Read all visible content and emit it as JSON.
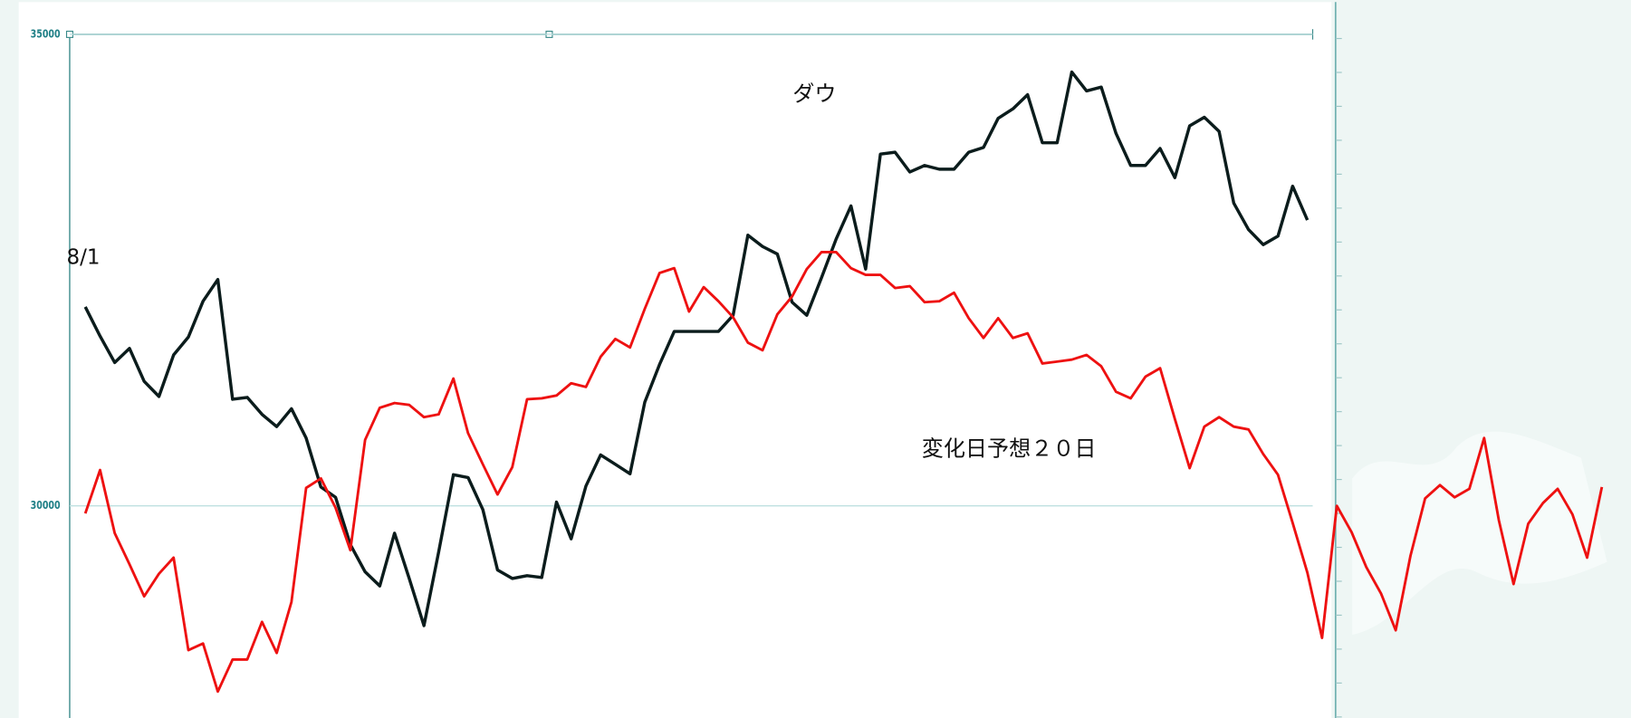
{
  "chart_data": {
    "type": "line",
    "categories": [
      "8/1",
      null,
      null,
      null,
      null,
      null,
      null,
      null,
      null,
      null,
      null,
      null,
      null,
      null,
      null,
      null,
      null,
      null,
      null,
      null,
      null,
      null,
      null,
      null,
      null,
      null,
      null,
      null,
      null,
      null,
      null,
      null,
      null,
      null,
      null,
      null,
      null,
      null,
      null,
      null,
      null,
      null,
      null,
      null,
      null,
      null,
      null,
      null,
      null,
      null,
      null,
      null,
      null,
      null,
      null,
      null,
      null,
      null,
      null,
      null,
      null,
      null,
      null,
      null,
      null,
      null,
      null,
      null,
      null,
      null,
      null,
      null,
      null,
      null,
      null,
      null,
      null,
      null,
      null,
      null,
      null,
      null,
      null,
      null,
      null,
      null,
      null,
      null,
      null,
      null,
      null,
      null,
      null,
      null,
      null,
      null,
      null,
      null,
      null,
      null,
      null,
      null,
      null,
      null
    ],
    "series": [
      {
        "name": "ダウ",
        "color": "#0b1c1c",
        "values": [
          32110,
          31800,
          31520,
          31670,
          31320,
          31160,
          31600,
          31790,
          32170,
          32400,
          31130,
          31150,
          30970,
          30840,
          31030,
          30720,
          30200,
          30090,
          29590,
          29300,
          29150,
          29710,
          29230,
          28730,
          29510,
          30330,
          30300,
          29960,
          29320,
          29230,
          29260,
          29240,
          30040,
          29650,
          30210,
          30540,
          30440,
          30340,
          31100,
          31500,
          31850,
          31850,
          31850,
          31850,
          32020,
          32870,
          32750,
          32670,
          32160,
          32020,
          32420,
          32830,
          33180,
          32510,
          33730,
          33750,
          33540,
          33610,
          33570,
          33570,
          33750,
          33800,
          34110,
          34210,
          34360,
          33850,
          33850,
          34600,
          34400,
          34440,
          33950,
          33610,
          33610,
          33790,
          33480,
          34030,
          34120,
          33970,
          33210,
          32930,
          32770,
          32860,
          33390,
          33030,
          null,
          null,
          null,
          null,
          null,
          null,
          null,
          null,
          null,
          null,
          null,
          null,
          null,
          null,
          null,
          null,
          null,
          null,
          null,
          null
        ]
      },
      {
        "name": "変化日予想２０日",
        "color": "#ee1111",
        "values": [
          29920,
          30380,
          29710,
          29380,
          29040,
          29280,
          29450,
          28470,
          28540,
          28030,
          28370,
          28370,
          28770,
          28440,
          28980,
          30190,
          30290,
          29980,
          29530,
          30700,
          31040,
          31090,
          31070,
          30940,
          30970,
          31350,
          30770,
          30440,
          30120,
          30410,
          31130,
          31140,
          31170,
          31300,
          31260,
          31580,
          31770,
          31680,
          32090,
          32470,
          32520,
          32060,
          32320,
          32170,
          32000,
          31730,
          31650,
          32030,
          32220,
          32510,
          32690,
          32690,
          32520,
          32450,
          32450,
          32310,
          32330,
          32160,
          32170,
          32260,
          31990,
          31780,
          31990,
          31780,
          31830,
          31510,
          31530,
          31550,
          31600,
          31480,
          31210,
          31140,
          31370,
          31460,
          30920,
          30400,
          30840,
          30940,
          30840,
          30810,
          30550,
          30330,
          29820,
          29290,
          28600,
          30000,
          29720,
          29350,
          29070,
          28680,
          29470,
          30080,
          30220,
          30090,
          30180,
          30720,
          29850,
          29170,
          29810,
          30030,
          30180,
          29910,
          29450,
          30200
        ]
      }
    ],
    "ylim": [
      27750,
      35000
    ],
    "yticks": [
      30000,
      35000
    ],
    "grid": true
  }
}
